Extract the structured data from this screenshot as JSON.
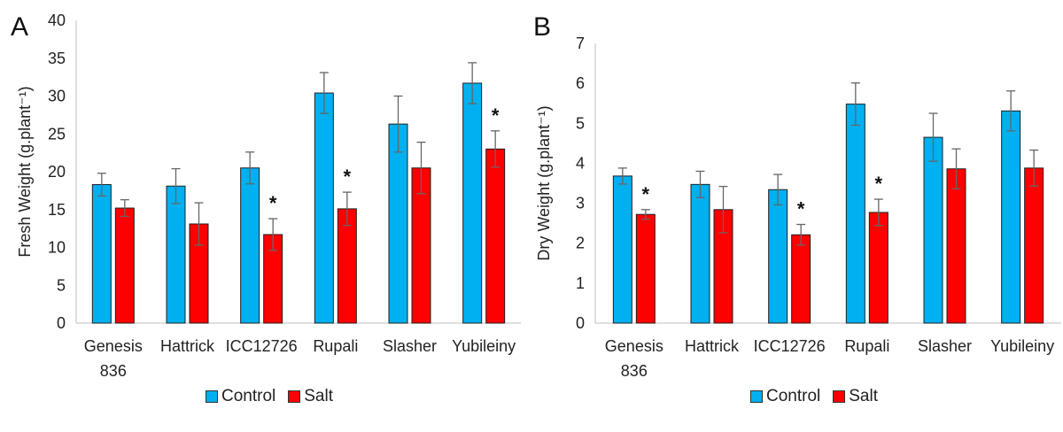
{
  "colors": {
    "control": "#00b0f0",
    "salt": "#ff0000",
    "error": "#666666",
    "axis": "#bfbfbf"
  },
  "legend": {
    "control_label": "Control",
    "salt_label": "Salt"
  },
  "chart_data": [
    {
      "type": "bar",
      "panel_label": "A",
      "title": "",
      "xlabel": "",
      "ylabel": "Fresh Weight (g.plant⁻¹)",
      "ylim": [
        0,
        40
      ],
      "yticks": [
        0,
        5,
        10,
        15,
        20,
        25,
        30,
        35,
        40
      ],
      "grid": false,
      "legend_position": "bottom",
      "categories": [
        [
          "Genesis",
          "836"
        ],
        [
          "Hattrick"
        ],
        [
          "ICC12726"
        ],
        [
          "Rupali"
        ],
        [
          "Slasher"
        ],
        [
          "Yubileiny"
        ]
      ],
      "series": [
        {
          "name": "Control",
          "values": [
            18.3,
            18.1,
            20.5,
            30.4,
            26.3,
            31.7
          ],
          "errors": [
            1.5,
            2.3,
            2.1,
            2.7,
            3.7,
            2.7
          ]
        },
        {
          "name": "Salt",
          "values": [
            15.2,
            13.1,
            11.7,
            15.1,
            20.5,
            23.0
          ],
          "errors": [
            1.1,
            2.8,
            2.1,
            2.2,
            3.4,
            2.4
          ]
        }
      ],
      "significance": [
        {
          "category": "ICC12726",
          "series": "Salt",
          "label": "*"
        },
        {
          "category": "Rupali",
          "series": "Salt",
          "label": "*"
        },
        {
          "category": "Yubileiny",
          "series": "Salt",
          "label": "*"
        }
      ]
    },
    {
      "type": "bar",
      "panel_label": "B",
      "title": "",
      "xlabel": "",
      "ylabel": "Dry Weight (g.plant⁻¹)",
      "ylim": [
        0,
        7
      ],
      "yticks": [
        0,
        1,
        2,
        3,
        4,
        5,
        6,
        7
      ],
      "grid": false,
      "legend_position": "bottom",
      "categories": [
        [
          "Genesis",
          "836"
        ],
        [
          "Hattrick"
        ],
        [
          "ICC12726"
        ],
        [
          "Rupali"
        ],
        [
          "Slasher"
        ],
        [
          "Yubileiny"
        ]
      ],
      "series": [
        {
          "name": "Control",
          "values": [
            3.68,
            3.47,
            3.34,
            5.48,
            4.65,
            5.31
          ],
          "errors": [
            0.2,
            0.33,
            0.38,
            0.53,
            0.6,
            0.5
          ]
        },
        {
          "name": "Salt",
          "values": [
            2.72,
            2.84,
            2.21,
            2.77,
            3.86,
            3.88
          ],
          "errors": [
            0.12,
            0.58,
            0.26,
            0.33,
            0.5,
            0.45
          ]
        }
      ],
      "significance": [
        {
          "category": "Genesis 836",
          "series": "Salt",
          "label": "*"
        },
        {
          "category": "ICC12726",
          "series": "Salt",
          "label": "*"
        },
        {
          "category": "Rupali",
          "series": "Salt",
          "label": "*"
        }
      ]
    }
  ]
}
